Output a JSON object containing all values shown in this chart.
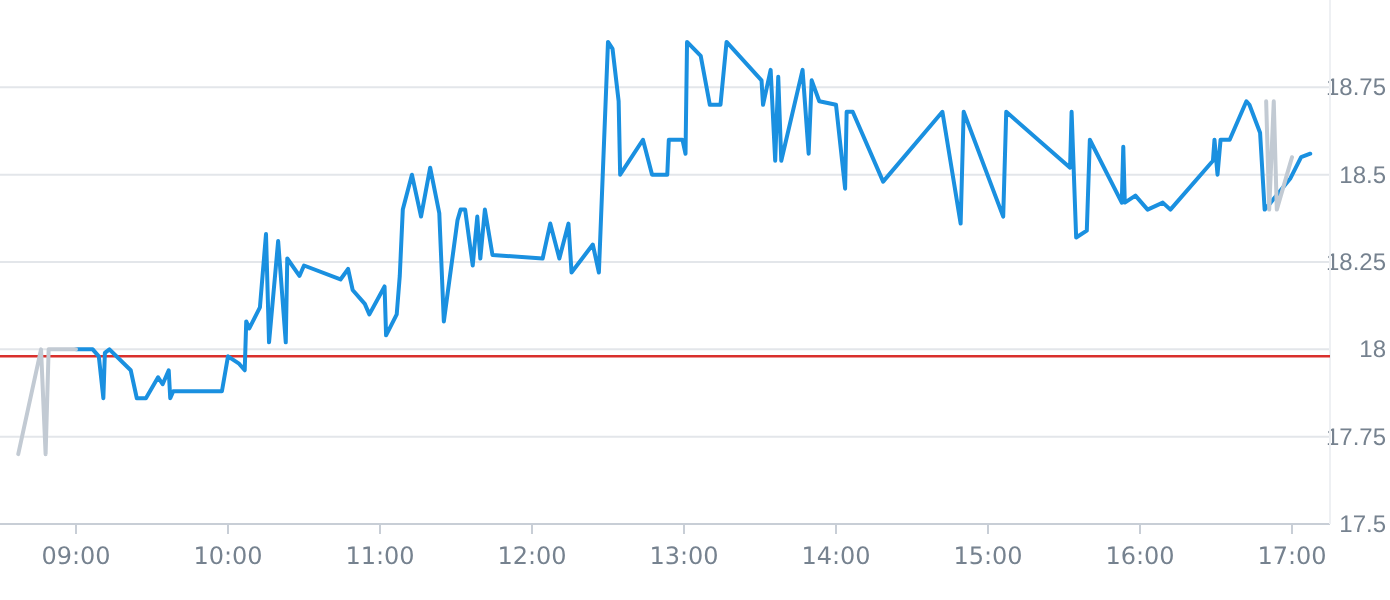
{
  "chart_data": {
    "type": "line",
    "xlim": [
      8.5,
      17.25
    ],
    "ylim": [
      17.5,
      19.0
    ],
    "xticks": [
      {
        "value": 9,
        "label": "09:00"
      },
      {
        "value": 10,
        "label": "10:00"
      },
      {
        "value": 11,
        "label": "11:00"
      },
      {
        "value": 12,
        "label": "12:00"
      },
      {
        "value": 13,
        "label": "13:00"
      },
      {
        "value": 14,
        "label": "14:00"
      },
      {
        "value": 15,
        "label": "15:00"
      },
      {
        "value": 16,
        "label": "16:00"
      },
      {
        "value": 17,
        "label": "17:00"
      }
    ],
    "yticks": [
      17.5,
      17.75,
      18,
      18.25,
      18.5,
      18.75
    ],
    "grid": "y",
    "marker": "none",
    "line_style": "solid",
    "ref_lines": [
      {
        "axis": "y",
        "value": 17.98,
        "color": "#d9302c"
      }
    ],
    "series": [
      {
        "color": "#1a90e0",
        "x": [
          9.0,
          9.11,
          9.15,
          9.18,
          9.19,
          9.22,
          9.36,
          9.4,
          9.46,
          9.54,
          9.57,
          9.61,
          9.62,
          9.64,
          9.96,
          10.0,
          10.07,
          10.11,
          10.12,
          10.14,
          10.21,
          10.25,
          10.27,
          10.33,
          10.38,
          10.39,
          10.47,
          10.5,
          10.74,
          10.79,
          10.82,
          10.9,
          10.93,
          11.03,
          11.04,
          11.11,
          11.13,
          11.15,
          11.21,
          11.27,
          11.33,
          11.39,
          11.42,
          11.51,
          11.53,
          11.56,
          11.61,
          11.64,
          11.66,
          11.69,
          11.74,
          12.07,
          12.12,
          12.18,
          12.24,
          12.26,
          12.4,
          12.44,
          12.5,
          12.53,
          12.57,
          12.58,
          12.73,
          12.79,
          12.89,
          12.9,
          12.99,
          13.01,
          13.02,
          13.11,
          13.17,
          13.24,
          13.28,
          13.51,
          13.52,
          13.57,
          13.6,
          13.62,
          13.64,
          13.78,
          13.82,
          13.84,
          13.89,
          14.0,
          14.06,
          14.07,
          14.11,
          14.31,
          14.7,
          14.82,
          14.84,
          15.1,
          15.12,
          15.54,
          15.55,
          15.58,
          15.65,
          15.67,
          15.88,
          15.89,
          15.9,
          15.97,
          16.05,
          16.15,
          16.2,
          16.48,
          16.49,
          16.51,
          16.53,
          16.59,
          16.7,
          16.72,
          16.79,
          16.82,
          16.86,
          16.99,
          17.06,
          17.12
        ],
        "values": [
          18.0,
          18.0,
          17.98,
          17.86,
          17.99,
          18.0,
          17.94,
          17.86,
          17.86,
          17.92,
          17.9,
          17.94,
          17.86,
          17.88,
          17.88,
          17.98,
          17.96,
          17.94,
          18.08,
          18.06,
          18.12,
          18.33,
          18.02,
          18.31,
          18.02,
          18.26,
          18.21,
          18.24,
          18.2,
          18.23,
          18.17,
          18.13,
          18.1,
          18.18,
          18.04,
          18.1,
          18.21,
          18.4,
          18.5,
          18.38,
          18.52,
          18.39,
          18.08,
          18.37,
          18.4,
          18.4,
          18.24,
          18.38,
          18.26,
          18.4,
          18.27,
          18.26,
          18.36,
          18.26,
          18.36,
          18.22,
          18.3,
          18.22,
          18.88,
          18.86,
          18.71,
          18.5,
          18.6,
          18.5,
          18.5,
          18.6,
          18.6,
          18.56,
          18.88,
          18.84,
          18.7,
          18.7,
          18.88,
          18.77,
          18.7,
          18.8,
          18.54,
          18.78,
          18.54,
          18.8,
          18.56,
          18.77,
          18.71,
          18.7,
          18.46,
          18.68,
          18.68,
          18.48,
          18.68,
          18.36,
          18.68,
          18.38,
          18.68,
          18.52,
          18.68,
          18.32,
          18.34,
          18.6,
          18.42,
          18.58,
          18.42,
          18.44,
          18.4,
          18.42,
          18.4,
          18.54,
          18.6,
          18.5,
          18.6,
          18.6,
          18.71,
          18.7,
          18.62,
          18.4,
          18.42,
          18.49,
          18.55,
          18.56
        ]
      },
      {
        "color": "#c2cad3",
        "x": [
          8.62,
          8.77,
          8.8,
          8.82,
          9.0,
          16.8,
          16.83,
          16.85,
          16.88,
          16.9,
          16.96,
          17.0
        ],
        "values": [
          17.7,
          18.0,
          17.7,
          18.0,
          18.0,
          null,
          18.71,
          18.4,
          18.71,
          18.4,
          18.49,
          18.55
        ]
      }
    ]
  }
}
